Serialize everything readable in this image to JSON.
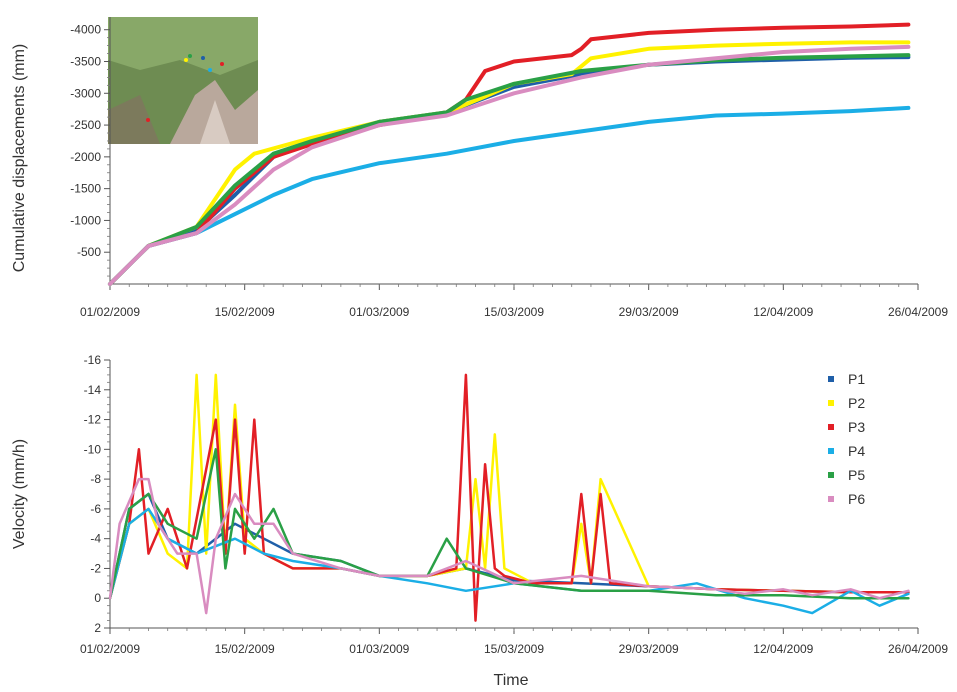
{
  "chart_data": [
    {
      "type": "line",
      "title": "",
      "xlabel": "",
      "ylabel": "Cumulative displacements (mm)",
      "xlim": [
        "01/02/2009",
        "26/04/2009"
      ],
      "ylim": [
        0,
        -4200
      ],
      "x_ticks": [
        "01/02/2009",
        "15/02/2009",
        "01/03/2009",
        "15/03/2009",
        "29/03/2009",
        "12/04/2009",
        "26/04/2009"
      ],
      "y_ticks": [
        0,
        -500,
        -1000,
        -1500,
        -2000,
        -2500,
        -3000,
        -3500,
        -4000
      ],
      "y_tick_labels": [
        "0",
        "-500",
        "-1000",
        "-1500",
        "-2000",
        "-2500",
        "-3000",
        "-3500",
        "-4000"
      ],
      "grid": false,
      "inset": "site photo (top-left) with colored point markers P1–P6",
      "series": [
        {
          "name": "P1",
          "color": "#1f5fa8",
          "x": [
            "01/02/2009",
            "05/02/2009",
            "10/02/2009",
            "14/02/2009",
            "18/02/2009",
            "22/02/2009",
            "01/03/2009",
            "08/03/2009",
            "15/03/2009",
            "22/03/2009",
            "29/03/2009",
            "05/04/2009",
            "12/04/2009",
            "19/04/2009",
            "25/04/2009"
          ],
          "values": [
            0,
            -600,
            -850,
            -1400,
            -2000,
            -2250,
            -2550,
            -2700,
            -3100,
            -3300,
            -3450,
            -3500,
            -3530,
            -3560,
            -3570
          ]
        },
        {
          "name": "P2",
          "color": "#fff200",
          "x": [
            "01/02/2009",
            "05/02/2009",
            "10/02/2009",
            "14/02/2009",
            "16/02/2009",
            "22/02/2009",
            "01/03/2009",
            "08/03/2009",
            "12/03/2009",
            "15/03/2009",
            "21/03/2009",
            "23/03/2009",
            "29/03/2009",
            "05/04/2009",
            "12/04/2009",
            "19/04/2009",
            "25/04/2009"
          ],
          "values": [
            0,
            -600,
            -900,
            -1800,
            -2050,
            -2300,
            -2550,
            -2700,
            -2950,
            -3150,
            -3300,
            -3550,
            -3700,
            -3750,
            -3780,
            -3800,
            -3800
          ]
        },
        {
          "name": "P3",
          "color": "#e21f26",
          "x": [
            "01/02/2009",
            "05/02/2009",
            "10/02/2009",
            "14/02/2009",
            "18/02/2009",
            "22/02/2009",
            "01/03/2009",
            "08/03/2009",
            "10/03/2009",
            "12/03/2009",
            "15/03/2009",
            "21/03/2009",
            "22/03/2009",
            "23/03/2009",
            "29/03/2009",
            "05/04/2009",
            "12/04/2009",
            "19/04/2009",
            "25/04/2009"
          ],
          "values": [
            0,
            -600,
            -800,
            -1500,
            -2000,
            -2200,
            -2500,
            -2700,
            -2900,
            -3350,
            -3500,
            -3600,
            -3700,
            -3850,
            -3950,
            -4000,
            -4030,
            -4050,
            -4080
          ]
        },
        {
          "name": "P4",
          "color": "#1baee6",
          "x": [
            "01/02/2009",
            "05/02/2009",
            "10/02/2009",
            "14/02/2009",
            "18/02/2009",
            "22/02/2009",
            "01/03/2009",
            "08/03/2009",
            "15/03/2009",
            "22/03/2009",
            "29/03/2009",
            "05/04/2009",
            "12/04/2009",
            "19/04/2009",
            "25/04/2009"
          ],
          "values": [
            0,
            -600,
            -800,
            -1100,
            -1400,
            -1650,
            -1900,
            -2050,
            -2250,
            -2400,
            -2550,
            -2650,
            -2680,
            -2720,
            -2770
          ]
        },
        {
          "name": "P5",
          "color": "#2aa046",
          "x": [
            "01/02/2009",
            "05/02/2009",
            "10/02/2009",
            "14/02/2009",
            "18/02/2009",
            "22/02/2009",
            "01/03/2009",
            "08/03/2009",
            "10/03/2009",
            "15/03/2009",
            "22/03/2009",
            "29/03/2009",
            "05/04/2009",
            "12/04/2009",
            "19/04/2009",
            "25/04/2009"
          ],
          "values": [
            0,
            -600,
            -900,
            -1550,
            -2050,
            -2250,
            -2550,
            -2700,
            -2900,
            -3150,
            -3350,
            -3450,
            -3520,
            -3560,
            -3580,
            -3600
          ]
        },
        {
          "name": "P6",
          "color": "#d98cc0",
          "x": [
            "01/02/2009",
            "05/02/2009",
            "10/02/2009",
            "14/02/2009",
            "18/02/2009",
            "22/02/2009",
            "01/03/2009",
            "08/03/2009",
            "15/03/2009",
            "22/03/2009",
            "29/03/2009",
            "05/04/2009",
            "12/04/2009",
            "19/04/2009",
            "25/04/2009"
          ],
          "values": [
            0,
            -600,
            -800,
            -1250,
            -1800,
            -2150,
            -2500,
            -2650,
            -3000,
            -3250,
            -3450,
            -3550,
            -3650,
            -3700,
            -3730
          ]
        }
      ]
    },
    {
      "type": "line",
      "title": "",
      "xlabel": "Time",
      "ylabel": "Velocity (mm/h)",
      "xlim": [
        "01/02/2009",
        "26/04/2009"
      ],
      "ylim": [
        2,
        -16
      ],
      "x_ticks": [
        "01/02/2009",
        "15/02/2009",
        "01/03/2009",
        "15/03/2009",
        "29/03/2009",
        "12/04/2009",
        "26/04/2009"
      ],
      "y_ticks": [
        2,
        0,
        -2,
        -4,
        -6,
        -8,
        -10,
        -12,
        -14,
        -16
      ],
      "y_tick_labels": [
        "2",
        "0",
        "-2",
        "-4",
        "-6",
        "-8",
        "-10",
        "-12",
        "-14",
        "-16"
      ],
      "grid": false,
      "legend": {
        "position": "top-right",
        "entries": [
          "P1",
          "P2",
          "P3",
          "P4",
          "P5",
          "P6"
        ]
      },
      "series": [
        {
          "name": "P1",
          "color": "#1f5fa8",
          "x": [
            "01/02/2009",
            "03/02/2009",
            "05/02/2009",
            "07/02/2009",
            "10/02/2009",
            "12/02/2009",
            "14/02/2009",
            "17/02/2009",
            "20/02/2009",
            "25/02/2009",
            "01/03/2009",
            "06/03/2009",
            "10/03/2009",
            "15/03/2009",
            "22/03/2009",
            "29/03/2009",
            "05/04/2009",
            "12/04/2009",
            "19/04/2009",
            "25/04/2009"
          ],
          "values": [
            0,
            -6,
            -7,
            -4,
            -3,
            -4,
            -5,
            -4,
            -3,
            -2.5,
            -1.5,
            -1.5,
            -2,
            -1.2,
            -1,
            -0.8,
            -0.6,
            -0.5,
            -0.4,
            -0.4
          ]
        },
        {
          "name": "P2",
          "color": "#fff200",
          "x": [
            "01/02/2009",
            "03/02/2009",
            "05/02/2009",
            "07/02/2009",
            "09/02/2009",
            "10/02/2009",
            "11/02/2009",
            "12/02/2009",
            "13/02/2009",
            "14/02/2009",
            "15/02/2009",
            "17/02/2009",
            "20/02/2009",
            "25/02/2009",
            "01/03/2009",
            "06/03/2009",
            "10/03/2009",
            "11/03/2009",
            "12/03/2009",
            "13/03/2009",
            "14/03/2009",
            "17/03/2009",
            "21/03/2009",
            "22/03/2009",
            "23/03/2009",
            "24/03/2009",
            "29/03/2009",
            "05/04/2009",
            "12/04/2009",
            "19/04/2009",
            "25/04/2009"
          ],
          "values": [
            0,
            -5,
            -6,
            -3,
            -2,
            -15,
            -3,
            -15,
            -3,
            -13,
            -4,
            -3,
            -2,
            -2,
            -1.5,
            -1.5,
            -2,
            -8,
            -2,
            -11,
            -2,
            -1,
            -1,
            -5,
            -1,
            -8,
            -0.8,
            -0.6,
            -0.5,
            -0.4,
            -0.4
          ]
        },
        {
          "name": "P3",
          "color": "#e21f26",
          "x": [
            "01/02/2009",
            "03/02/2009",
            "04/02/2009",
            "05/02/2009",
            "07/02/2009",
            "09/02/2009",
            "12/02/2009",
            "13/02/2009",
            "14/02/2009",
            "15/02/2009",
            "16/02/2009",
            "17/02/2009",
            "20/02/2009",
            "25/02/2009",
            "01/03/2009",
            "06/03/2009",
            "09/03/2009",
            "10/03/2009",
            "11/03/2009",
            "12/03/2009",
            "13/03/2009",
            "14/03/2009",
            "17/03/2009",
            "21/03/2009",
            "22/03/2009",
            "23/03/2009",
            "24/03/2009",
            "25/03/2009",
            "29/03/2009",
            "05/04/2009",
            "12/04/2009",
            "19/04/2009",
            "25/04/2009"
          ],
          "values": [
            0,
            -5,
            -10,
            -3,
            -6,
            -2,
            -12,
            -3,
            -12,
            -3,
            -12,
            -3,
            -2,
            -2,
            -1.5,
            -1.5,
            -2,
            -15,
            1.5,
            -9,
            -2,
            -1.5,
            -1,
            -1,
            -7,
            -1,
            -7,
            -1,
            -0.8,
            -0.6,
            -0.5,
            -0.4,
            -0.4
          ]
        },
        {
          "name": "P4",
          "color": "#1baee6",
          "x": [
            "01/02/2009",
            "03/02/2009",
            "05/02/2009",
            "07/02/2009",
            "10/02/2009",
            "14/02/2009",
            "17/02/2009",
            "20/02/2009",
            "25/02/2009",
            "01/03/2009",
            "06/03/2009",
            "10/03/2009",
            "15/03/2009",
            "22/03/2009",
            "29/03/2009",
            "03/04/2009",
            "08/04/2009",
            "12/04/2009",
            "15/04/2009",
            "19/04/2009",
            "22/04/2009",
            "25/04/2009"
          ],
          "values": [
            0,
            -5,
            -6,
            -4,
            -3,
            -4,
            -3,
            -2.5,
            -2,
            -1.5,
            -1,
            -0.5,
            -1,
            -0.5,
            -0.5,
            -1,
            0,
            0.5,
            1,
            -0.5,
            0.5,
            -0.3
          ]
        },
        {
          "name": "P5",
          "color": "#2aa046",
          "x": [
            "01/02/2009",
            "03/02/2009",
            "05/02/2009",
            "07/02/2009",
            "10/02/2009",
            "12/02/2009",
            "13/02/2009",
            "14/02/2009",
            "16/02/2009",
            "18/02/2009",
            "20/02/2009",
            "25/02/2009",
            "01/03/2009",
            "06/03/2009",
            "08/03/2009",
            "10/03/2009",
            "15/03/2009",
            "22/03/2009",
            "29/03/2009",
            "05/04/2009",
            "12/04/2009",
            "19/04/2009",
            "25/04/2009"
          ],
          "values": [
            0,
            -6,
            -7,
            -5,
            -4,
            -10,
            -2,
            -6,
            -4,
            -6,
            -3,
            -2.5,
            -1.5,
            -1.5,
            -4,
            -2,
            -1,
            -0.5,
            -0.5,
            -0.2,
            -0.2,
            0,
            0
          ]
        },
        {
          "name": "P6",
          "color": "#d98cc0",
          "x": [
            "01/02/2009",
            "02/02/2009",
            "04/02/2009",
            "05/02/2009",
            "06/02/2009",
            "08/02/2009",
            "10/02/2009",
            "11/02/2009",
            "12/02/2009",
            "14/02/2009",
            "16/02/2009",
            "18/02/2009",
            "20/02/2009",
            "25/02/2009",
            "01/03/2009",
            "06/03/2009",
            "10/03/2009",
            "15/03/2009",
            "22/03/2009",
            "29/03/2009",
            "05/04/2009",
            "08/04/2009",
            "12/04/2009",
            "15/04/2009",
            "19/04/2009",
            "22/04/2009",
            "25/04/2009"
          ],
          "values": [
            0,
            -5,
            -8,
            -8,
            -5,
            -3,
            -3,
            1,
            -4,
            -7,
            -5,
            -5,
            -3,
            -2,
            -1.5,
            -1.5,
            -2.5,
            -1,
            -1.5,
            -0.8,
            -0.6,
            -0.3,
            -0.6,
            -0.2,
            -0.6,
            0,
            -0.5
          ]
        }
      ]
    }
  ]
}
